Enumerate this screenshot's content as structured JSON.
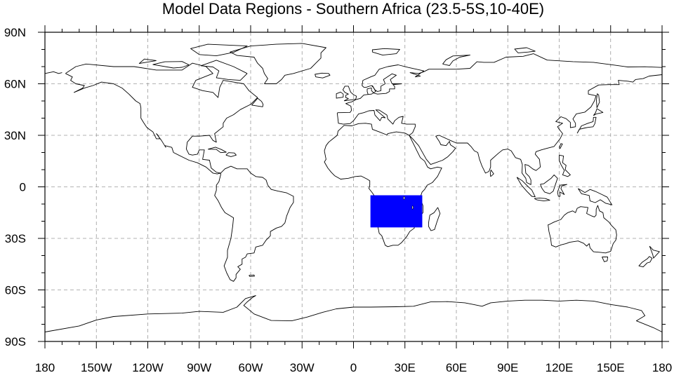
{
  "title": "Model Data Regions - Southern Africa (23.5-5S,10-40E)",
  "map": {
    "projection": "cylindrical equidistant",
    "lon_range": [
      -180,
      180
    ],
    "lat_range": [
      -90,
      90
    ],
    "gridlines": true,
    "lon_ticks": [
      {
        "value": -180,
        "label": "180"
      },
      {
        "value": -150,
        "label": "150W"
      },
      {
        "value": -120,
        "label": "120W"
      },
      {
        "value": -90,
        "label": "90W"
      },
      {
        "value": -60,
        "label": "60W"
      },
      {
        "value": -30,
        "label": "30W"
      },
      {
        "value": 0,
        "label": "0"
      },
      {
        "value": 30,
        "label": "30E"
      },
      {
        "value": 60,
        "label": "60E"
      },
      {
        "value": 90,
        "label": "90E"
      },
      {
        "value": 120,
        "label": "120E"
      },
      {
        "value": 150,
        "label": "150E"
      },
      {
        "value": 180,
        "label": "180"
      }
    ],
    "lat_ticks": [
      {
        "value": 90,
        "label": "90N"
      },
      {
        "value": 60,
        "label": "60N"
      },
      {
        "value": 30,
        "label": "30N"
      },
      {
        "value": 0,
        "label": "0"
      },
      {
        "value": -30,
        "label": "30S"
      },
      {
        "value": -60,
        "label": "60S"
      },
      {
        "value": -90,
        "label": "90S"
      }
    ],
    "region": {
      "lat_min": -23.5,
      "lat_max": -5,
      "lon_min": 10,
      "lon_max": 40,
      "fill_color": "#0000ff"
    },
    "colors": {
      "coastline": "#000000",
      "grid": "#9a9a9a",
      "background": "#ffffff"
    }
  }
}
